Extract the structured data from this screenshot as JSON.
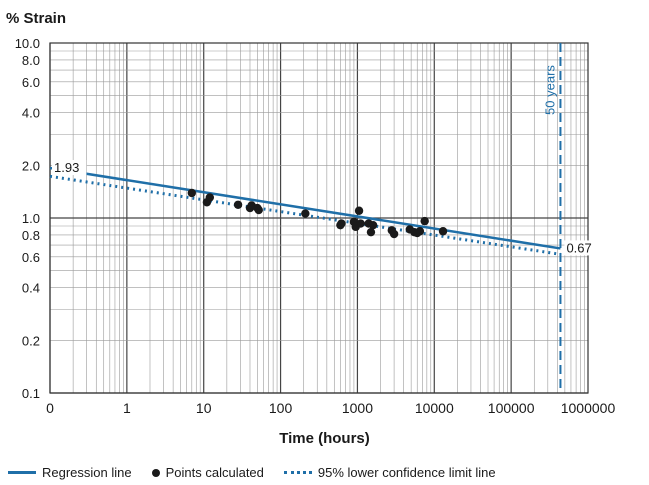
{
  "chart_data": {
    "type": "scatter",
    "title": "",
    "ylabel": "% Strain",
    "xlabel": "Time (hours)",
    "x_scale": "log",
    "y_scale": "log",
    "xlim": [
      0.1,
      1000000
    ],
    "ylim": [
      0.1,
      10.0
    ],
    "x_ticks": [
      "0",
      "1",
      "10",
      "100",
      "1000",
      "10000",
      "100000",
      "1000000"
    ],
    "y_ticks": [
      "10.0",
      "8.0",
      "6.0",
      "4.0",
      "2.0",
      "1.0",
      "0.8",
      "0.6",
      "0.4",
      "0.2",
      "0.1"
    ],
    "grid": true,
    "series": [
      {
        "name": "Regression line",
        "type": "line",
        "style": "solid",
        "color": "#1f6fa8",
        "x": [
          0.1,
          438000
        ],
        "y": [
          1.93,
          0.67
        ]
      },
      {
        "name": "95% lower confidence limit line",
        "type": "line",
        "style": "dotted",
        "color": "#1f6fa8",
        "x": [
          0.1,
          438000
        ],
        "y": [
          1.73,
          0.62
        ]
      },
      {
        "name": "Points calculated",
        "type": "scatter",
        "color": "#1a1a1a",
        "x": [
          7,
          11,
          12,
          28,
          40,
          42,
          50,
          52,
          210,
          600,
          620,
          900,
          950,
          1050,
          1100,
          1400,
          1500,
          1600,
          2800,
          3000,
          4800,
          5500,
          6000,
          6500,
          7500,
          13000
        ],
        "y": [
          1.39,
          1.23,
          1.31,
          1.19,
          1.14,
          1.18,
          1.14,
          1.11,
          1.06,
          0.91,
          0.93,
          0.95,
          0.89,
          1.1,
          0.93,
          0.93,
          0.83,
          0.91,
          0.85,
          0.81,
          0.86,
          0.83,
          0.82,
          0.84,
          0.96,
          0.84
        ]
      }
    ],
    "annotations": [
      {
        "text": "1.93",
        "x": 0.1,
        "y": 1.93
      },
      {
        "text": "0.67",
        "x": 438000,
        "y": 0.67
      },
      {
        "text": "50 years",
        "x": 438000,
        "orientation": "vertical"
      }
    ],
    "reference_lines": [
      {
        "axis": "x",
        "value": 438000,
        "style": "dashed",
        "color": "#1f6fa8",
        "label": "50 years"
      }
    ],
    "legend": {
      "position": "bottom",
      "items": [
        {
          "label": "Regression line",
          "marker": "solid-line"
        },
        {
          "label": "Points calculated",
          "marker": "dot"
        },
        {
          "label": "95% lower confidence limit line",
          "marker": "dotted-line"
        }
      ]
    }
  }
}
